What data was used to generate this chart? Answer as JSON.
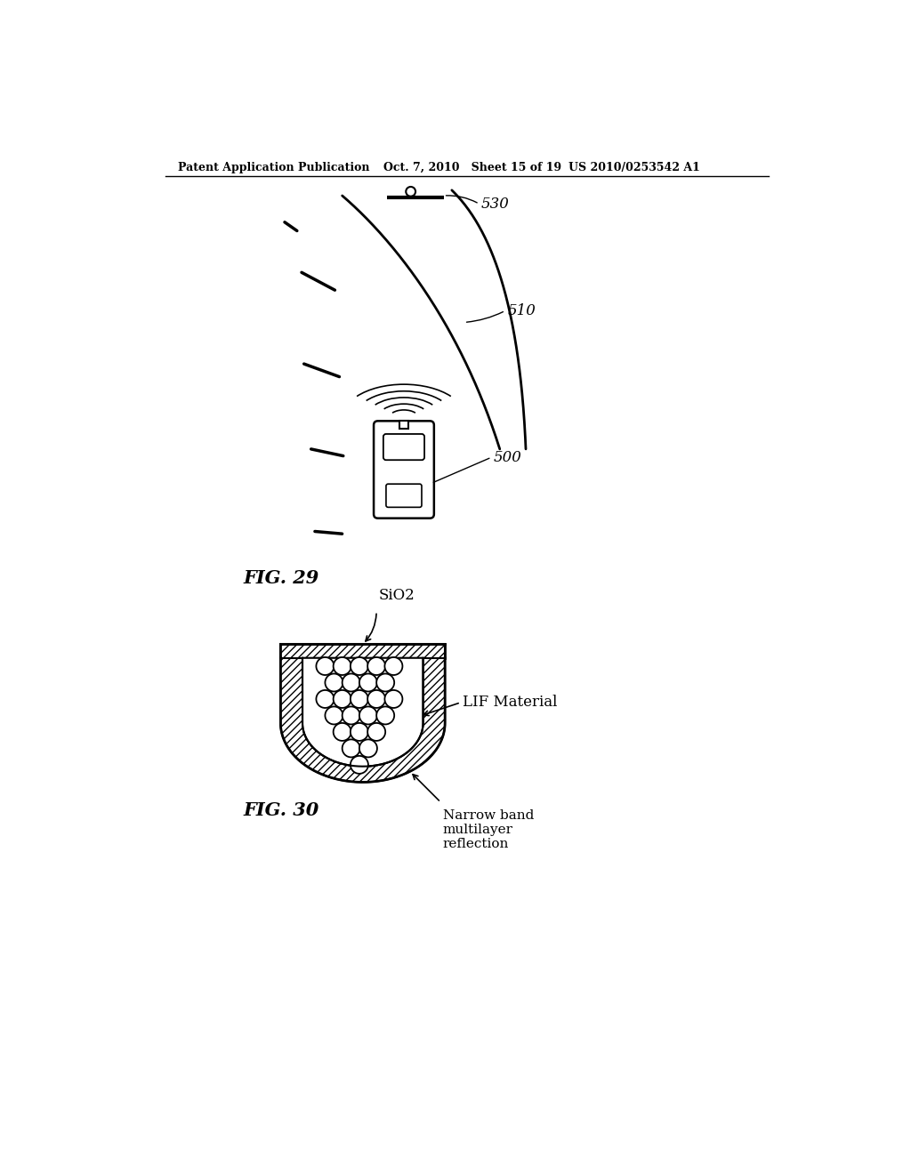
{
  "header_left": "Patent Application Publication",
  "header_mid": "Oct. 7, 2010   Sheet 15 of 19",
  "header_right": "US 2010/0253542 A1",
  "fig29_label": "FIG. 29",
  "fig30_label": "FIG. 30",
  "label_500": "500",
  "label_510": "510",
  "label_530": "530",
  "label_sio2": "SiO2",
  "label_lif": "LIF Material",
  "label_narrow": "Narrow band\nmultilayer\nreflection",
  "bg_color": "#ffffff",
  "line_color": "#000000"
}
